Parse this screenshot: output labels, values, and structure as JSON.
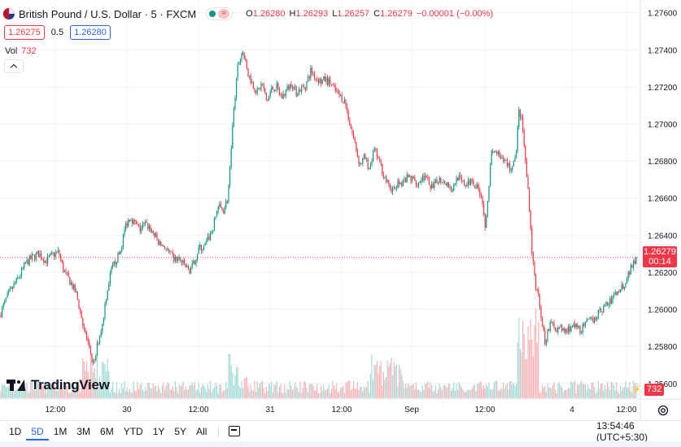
{
  "legend": {
    "symbol": "British Pound / U.S. Dollar · 5 · FXCM",
    "wave_glyph": "≈",
    "open_label": "O",
    "open": "1.26280",
    "high_label": "H",
    "high": "1.26293",
    "low_label": "L",
    "low": "1.26257",
    "close_label": "C",
    "close": "1.26279",
    "change": "−0.00001 (−0.00%)"
  },
  "quote": {
    "sell": "1.26275",
    "spread": "0.5",
    "buy": "1.26280"
  },
  "volume": {
    "label": "Vol",
    "value": "732"
  },
  "logo": {
    "name": "TradingView"
  },
  "last_price": {
    "value": "1.26279",
    "countdown": "00:14"
  },
  "volume_badge": "732",
  "bolt_glyph": "⚡",
  "ranges": [
    "1D",
    "5D",
    "1M",
    "3M",
    "6M",
    "YTD",
    "1Y",
    "5Y",
    "All"
  ],
  "active_range": "5D",
  "clock": "13:54:46 (UTC+5:30)",
  "colors": {
    "up": "#089981",
    "down": "#f23645",
    "up_volume": "#a5dcd6",
    "down_volume": "#f7b4b8",
    "accent": "#2962ff",
    "grid": "#f0f3fa"
  },
  "icons": [
    "gbp-usd-flag-icon",
    "market-open-icon",
    "collapse-chevron-icon",
    "tradingview-logo-icon",
    "lightning-icon",
    "settings-icon",
    "calendar-icon"
  ],
  "chart_data": {
    "type": "candlestick",
    "y_axis": {
      "ticks": [
        "1.25600",
        "1.25800",
        "1.26000",
        "1.26200",
        "1.26400",
        "1.26600",
        "1.26800",
        "1.27000",
        "1.27200",
        "1.27400",
        "1.27600"
      ],
      "range": [
        1.2552,
        1.2766
      ]
    },
    "x_axis": {
      "ticks": [
        "12:00",
        "30",
        "12:00",
        "31",
        "12:00",
        "Sep",
        "12:00",
        "4",
        "12:00"
      ]
    },
    "grid": true,
    "price_path": [
      [
        0,
        1.2597
      ],
      [
        8,
        1.2606
      ],
      [
        16,
        1.2612
      ],
      [
        24,
        1.2618
      ],
      [
        32,
        1.2625
      ],
      [
        40,
        1.2628
      ],
      [
        48,
        1.263
      ],
      [
        56,
        1.2626
      ],
      [
        64,
        1.2629
      ],
      [
        72,
        1.2631
      ],
      [
        78,
        1.2621
      ],
      [
        86,
        1.2615
      ],
      [
        94,
        1.2608
      ],
      [
        100,
        1.2596
      ],
      [
        106,
        1.2585
      ],
      [
        112,
        1.2573
      ],
      [
        116,
        1.257
      ],
      [
        120,
        1.2582
      ],
      [
        126,
        1.2592
      ],
      [
        130,
        1.2606
      ],
      [
        136,
        1.262
      ],
      [
        142,
        1.2626
      ],
      [
        148,
        1.2631
      ],
      [
        154,
        1.2645
      ],
      [
        160,
        1.265
      ],
      [
        166,
        1.2646
      ],
      [
        172,
        1.2643
      ],
      [
        178,
        1.2646
      ],
      [
        184,
        1.2644
      ],
      [
        190,
        1.264
      ],
      [
        196,
        1.2635
      ],
      [
        202,
        1.2634
      ],
      [
        208,
        1.263
      ],
      [
        214,
        1.2627
      ],
      [
        220,
        1.2627
      ],
      [
        226,
        1.2624
      ],
      [
        232,
        1.2621
      ],
      [
        238,
        1.2624
      ],
      [
        244,
        1.2633
      ],
      [
        250,
        1.2633
      ],
      [
        256,
        1.2638
      ],
      [
        262,
        1.2644
      ],
      [
        268,
        1.2656
      ],
      [
        274,
        1.2653
      ],
      [
        280,
        1.266
      ],
      [
        286,
        1.27
      ],
      [
        292,
        1.273
      ],
      [
        298,
        1.274
      ],
      [
        304,
        1.2728
      ],
      [
        310,
        1.2722
      ],
      [
        316,
        1.2717
      ],
      [
        322,
        1.2722
      ],
      [
        328,
        1.2712
      ],
      [
        334,
        1.2719
      ],
      [
        340,
        1.272
      ],
      [
        346,
        1.2714
      ],
      [
        352,
        1.2718
      ],
      [
        358,
        1.2722
      ],
      [
        364,
        1.2717
      ],
      [
        370,
        1.2719
      ],
      [
        376,
        1.2721
      ],
      [
        382,
        1.2729
      ],
      [
        388,
        1.2725
      ],
      [
        394,
        1.2723
      ],
      [
        400,
        1.2724
      ],
      [
        406,
        1.2722
      ],
      [
        412,
        1.2718
      ],
      [
        418,
        1.2715
      ],
      [
        424,
        1.2712
      ],
      [
        430,
        1.27
      ],
      [
        436,
        1.269
      ],
      [
        442,
        1.2678
      ],
      [
        448,
        1.2682
      ],
      [
        454,
        1.2676
      ],
      [
        460,
        1.2686
      ],
      [
        466,
        1.268
      ],
      [
        472,
        1.2672
      ],
      [
        478,
        1.2666
      ],
      [
        484,
        1.2664
      ],
      [
        490,
        1.2668
      ],
      [
        496,
        1.2669
      ],
      [
        502,
        1.2671
      ],
      [
        508,
        1.267
      ],
      [
        514,
        1.2668
      ],
      [
        520,
        1.2672
      ],
      [
        526,
        1.2669
      ],
      [
        532,
        1.2665
      ],
      [
        538,
        1.267
      ],
      [
        544,
        1.267
      ],
      [
        550,
        1.2668
      ],
      [
        556,
        1.2664
      ],
      [
        562,
        1.2672
      ],
      [
        568,
        1.2668
      ],
      [
        574,
        1.2667
      ],
      [
        580,
        1.267
      ],
      [
        586,
        1.2666
      ],
      [
        592,
        1.2662
      ],
      [
        596,
        1.2645
      ],
      [
        600,
        1.2662
      ],
      [
        604,
        1.2684
      ],
      [
        610,
        1.2685
      ],
      [
        616,
        1.268
      ],
      [
        622,
        1.268
      ],
      [
        628,
        1.2675
      ],
      [
        634,
        1.2684
      ],
      [
        638,
        1.2708
      ],
      [
        642,
        1.27
      ],
      [
        646,
        1.2678
      ],
      [
        650,
        1.266
      ],
      [
        654,
        1.263
      ],
      [
        658,
        1.2614
      ],
      [
        662,
        1.2605
      ],
      [
        666,
        1.2594
      ],
      [
        670,
        1.2582
      ],
      [
        674,
        1.259
      ],
      [
        678,
        1.2592
      ],
      [
        684,
        1.259
      ],
      [
        690,
        1.2589
      ],
      [
        696,
        1.2588
      ],
      [
        702,
        1.2591
      ],
      [
        708,
        1.259
      ],
      [
        714,
        1.2589
      ],
      [
        720,
        1.2592
      ],
      [
        726,
        1.2594
      ],
      [
        732,
        1.2596
      ],
      [
        738,
        1.2599
      ],
      [
        744,
        1.2602
      ],
      [
        750,
        1.2604
      ],
      [
        756,
        1.2608
      ],
      [
        762,
        1.2611
      ],
      [
        768,
        1.2614
      ],
      [
        774,
        1.2621
      ],
      [
        778,
        1.2625
      ],
      [
        782,
        1.2628
      ]
    ],
    "last_value": 1.26279,
    "volume_series_value": 732
  }
}
